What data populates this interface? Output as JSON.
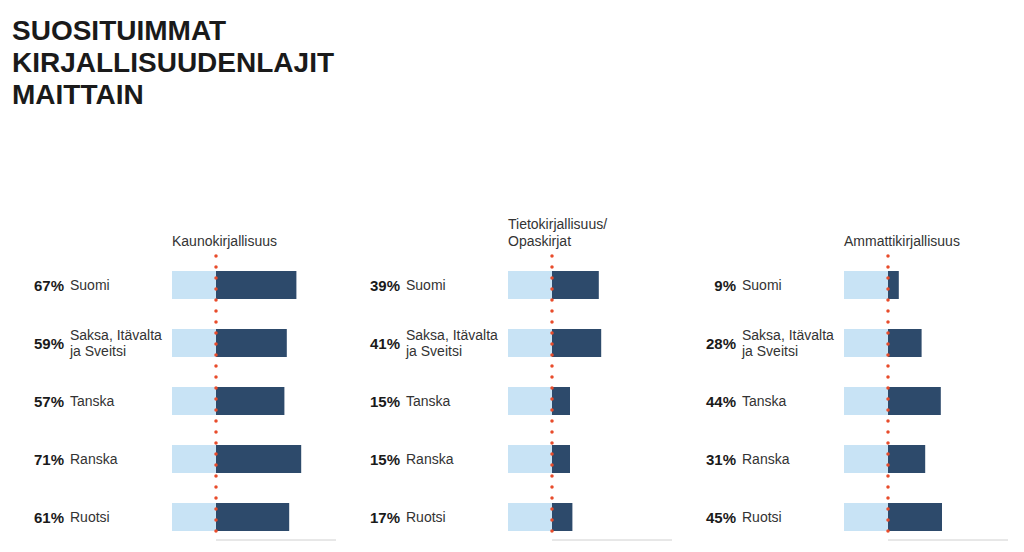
{
  "chart_data": {
    "type": "bar",
    "orientation": "horizontal",
    "title": "SUOSITUIMMAT\nKIRJALLISUUDENLAJIT\nMAITTAIN",
    "categories": [
      "Suomi",
      "Saksa, Itävalta\nja Sveitsi",
      "Tanska",
      "Ranska",
      "Ruotsi"
    ],
    "series": [
      {
        "name": "Kaunokirjallisuus",
        "color": "#2d4a6b",
        "values": [
          67,
          59,
          57,
          71,
          61
        ],
        "value_labels": [
          "67%",
          "59%",
          "57%",
          "71%",
          "61%"
        ]
      },
      {
        "name": "Tietokirjallisuus/\nOpaskirjat",
        "color": "#2d4a6b",
        "values": [
          39,
          41,
          15,
          15,
          17
        ],
        "value_labels": [
          "39%",
          "41%",
          "15%",
          "15%",
          "17%"
        ]
      },
      {
        "name": "Ammattikirjallisuus",
        "color": "#2d4a6b",
        "values": [
          9,
          28,
          44,
          31,
          45
        ],
        "value_labels": [
          "9%",
          "28%",
          "44%",
          "31%",
          "45%"
        ]
      }
    ],
    "xlim": [
      0,
      100
    ],
    "data_labels": true,
    "tick_labels": false,
    "grid": false
  }
}
